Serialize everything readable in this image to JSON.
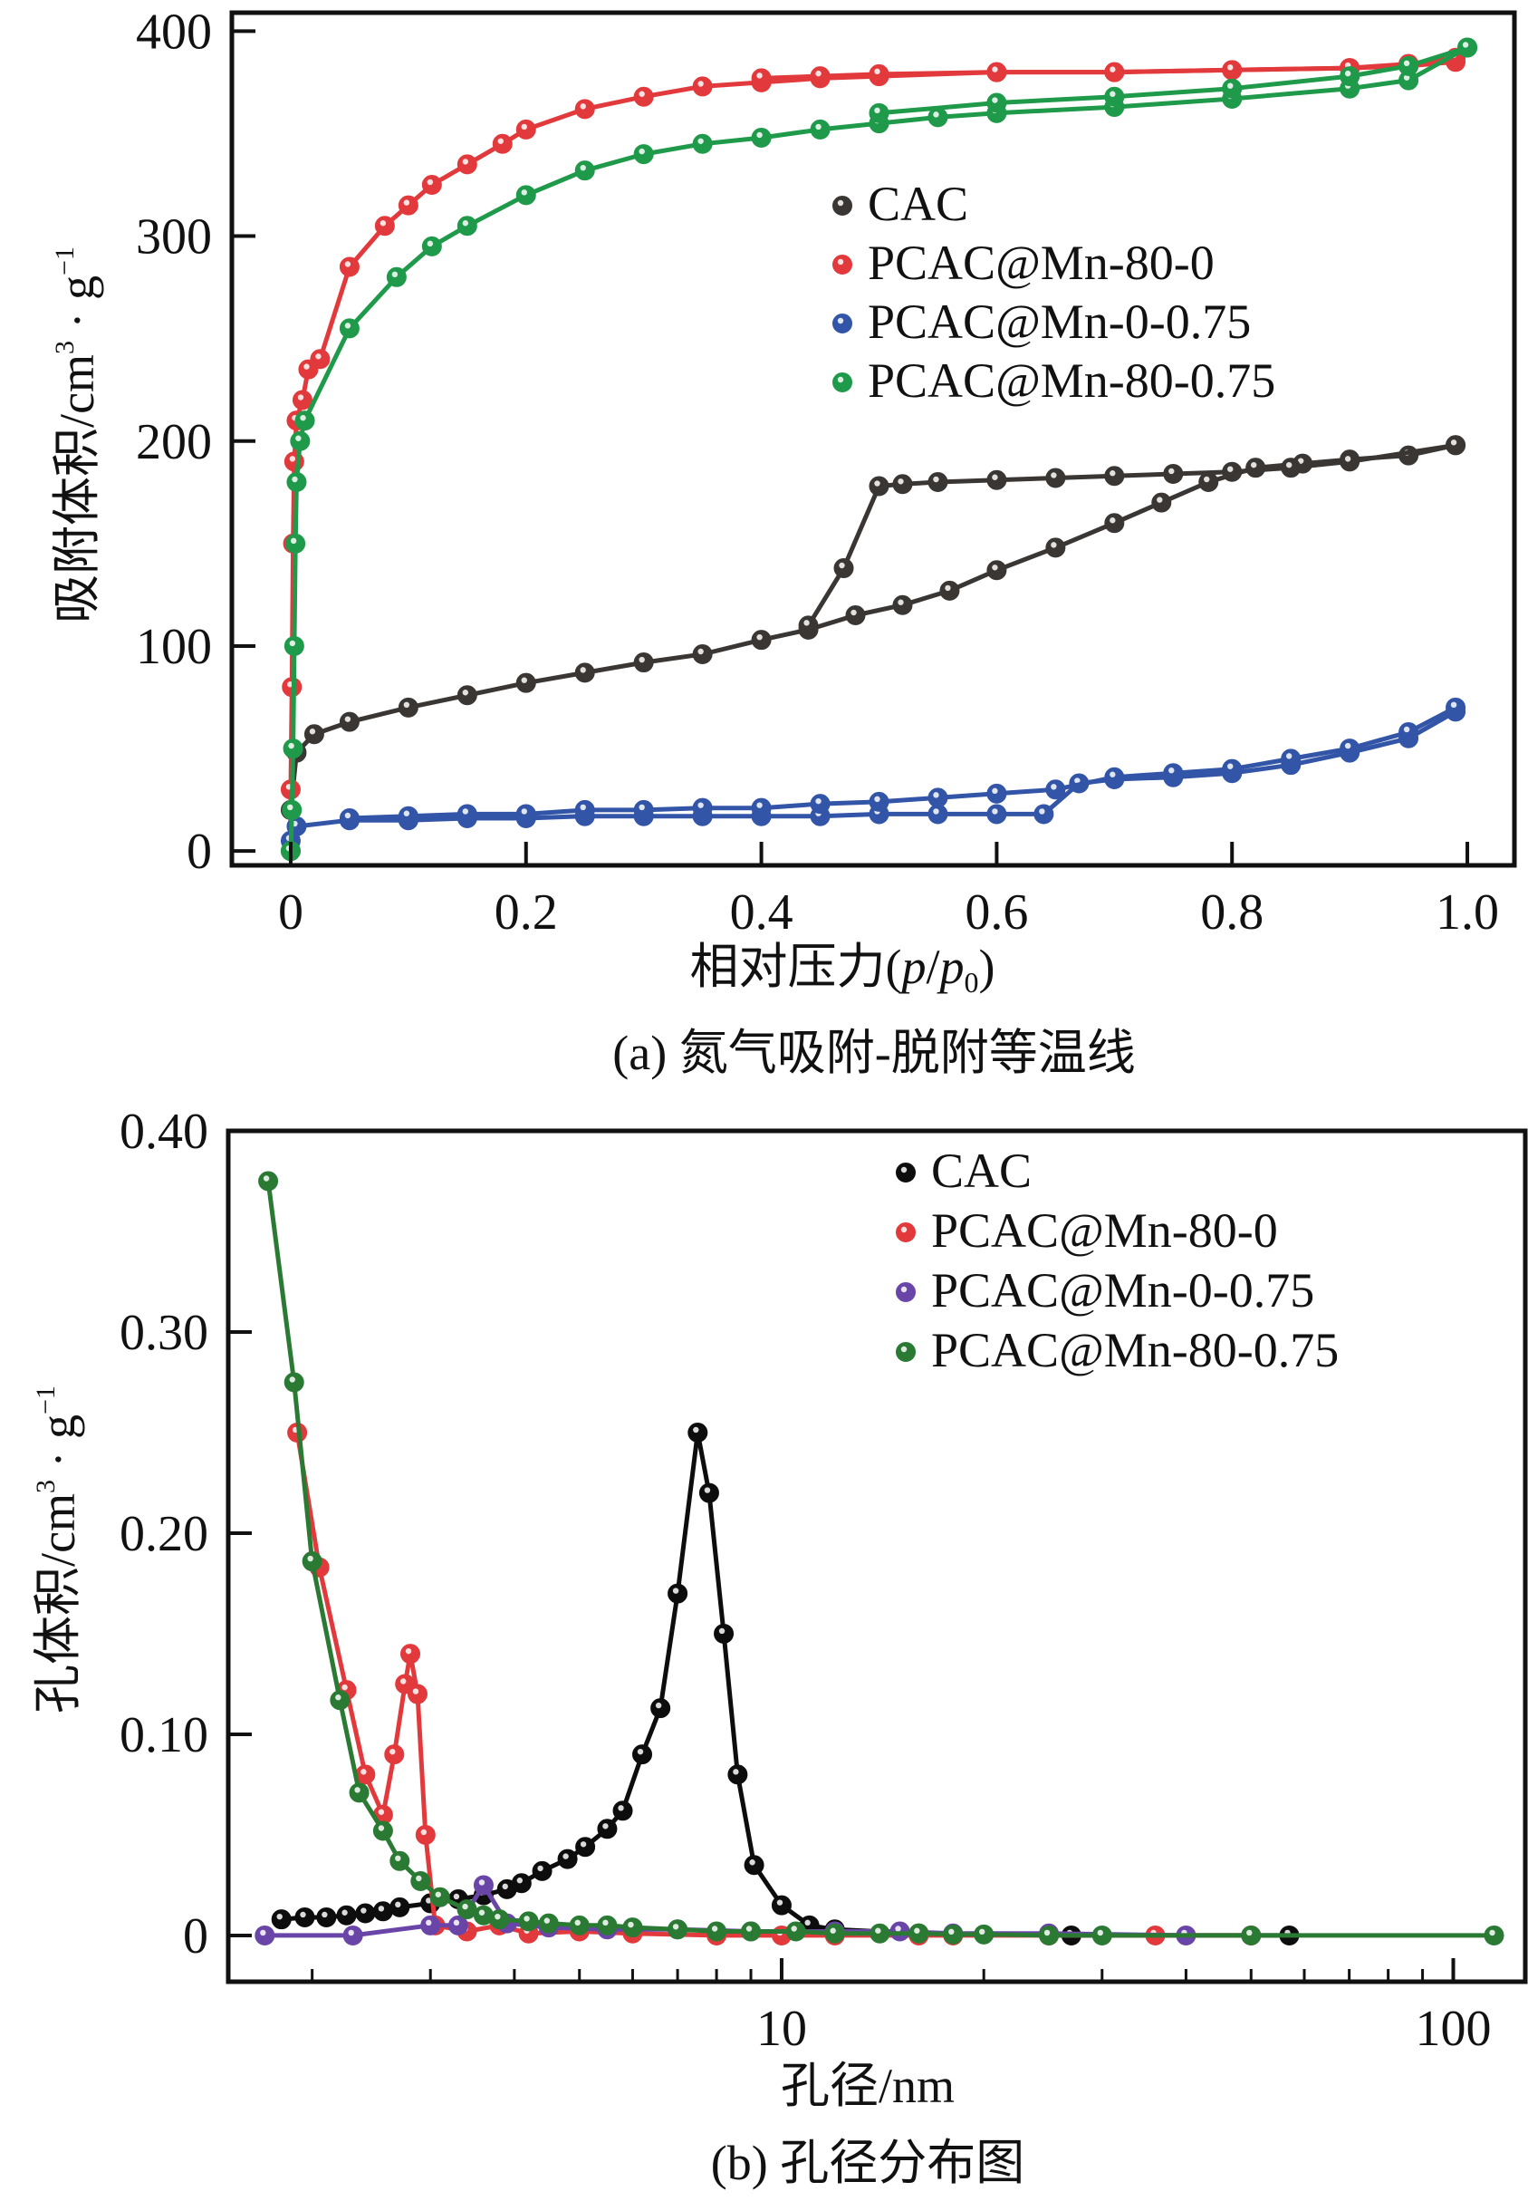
{
  "chart_data": [
    {
      "id": "a",
      "type": "line",
      "title": "",
      "caption": "(a) 氮气吸附-脱附等温线",
      "xlabel": "相对压力(p/p0)",
      "xlabel_parts": {
        "prefix": "相对压力(",
        "p": "p",
        "slash": "/",
        "p0": "p",
        "sub": "0",
        "suffix": ")"
      },
      "ylabel": "吸附体积/cm³ · g⁻¹",
      "ylabel_parts": {
        "main": "吸附体积/cm",
        "sup": "3",
        "mid": " · g",
        "sup2": "−1"
      },
      "xscale": "linear",
      "xlim": [
        -0.05,
        1.04
      ],
      "ylim": [
        -7,
        409
      ],
      "xticks": [
        0,
        0.2,
        0.4,
        0.6,
        0.8,
        1.0
      ],
      "xtick_labels": [
        "0",
        "0.2",
        "0.4",
        "0.6",
        "0.8",
        "1.0"
      ],
      "yticks": [
        0,
        100,
        200,
        300,
        400
      ],
      "ytick_labels": [
        "0",
        "100",
        "200",
        "300",
        "400"
      ],
      "grid": false,
      "legend_position": "upper-right",
      "legend": [
        "CAC",
        "PCAC@Mn-80-0",
        "PCAC@Mn-0-0.75",
        "PCAC@Mn-80-0.75"
      ],
      "series": [
        {
          "name": "CAC",
          "color": "#3a3634",
          "adsorption": {
            "x": [
              0.0,
              0.005,
              0.02,
              0.05,
              0.1,
              0.15,
              0.2,
              0.25,
              0.3,
              0.35,
              0.4,
              0.44,
              0.48,
              0.52,
              0.56,
              0.6,
              0.65,
              0.7,
              0.74,
              0.78,
              0.82,
              0.86,
              0.9,
              0.95,
              0.99
            ],
            "y": [
              20,
              48,
              57,
              63,
              70,
              76,
              82,
              87,
              92,
              96,
              103,
              108,
              115,
              120,
              127,
              137,
              148,
              160,
              170,
              180,
              187,
              189,
              191,
              193,
              198
            ]
          },
          "desorption": {
            "x": [
              0.99,
              0.9,
              0.85,
              0.8,
              0.75,
              0.7,
              0.65,
              0.6,
              0.55,
              0.52,
              0.5,
              0.47,
              0.44
            ],
            "y": [
              198,
              190,
              187,
              185,
              184,
              183,
              182,
              181,
              180,
              179,
              178,
              138,
              110
            ]
          }
        },
        {
          "name": "PCAC@Mn-80-0",
          "color": "#e23a3c",
          "adsorption": {
            "x": [
              0.0,
              0.0,
              0.001,
              0.002,
              0.003,
              0.005,
              0.01,
              0.015,
              0.025,
              0.05,
              0.08,
              0.1,
              0.12,
              0.15,
              0.18,
              0.2,
              0.25,
              0.3,
              0.35,
              0.4,
              0.45,
              0.5,
              0.6,
              0.7,
              0.8,
              0.9,
              0.95,
              0.99
            ],
            "y": [
              0,
              30,
              80,
              150,
              190,
              210,
              220,
              235,
              240,
              285,
              305,
              315,
              325,
              335,
              345,
              352,
              362,
              368,
              373,
              375,
              377,
              378,
              380,
              380,
              381,
              382,
              383,
              385
            ]
          },
          "desorption": {
            "x": [
              0.99,
              0.95,
              0.9,
              0.8,
              0.7,
              0.6,
              0.5,
              0.45,
              0.4
            ],
            "y": [
              387,
              384,
              382,
              381,
              380,
              380,
              379,
              378,
              377
            ]
          }
        },
        {
          "name": "PCAC@Mn-0-0.75",
          "color": "#3355a8",
          "adsorption": {
            "x": [
              0.0,
              0.005,
              0.05,
              0.1,
              0.15,
              0.2,
              0.25,
              0.3,
              0.35,
              0.4,
              0.45,
              0.5,
              0.55,
              0.6,
              0.64,
              0.67,
              0.7,
              0.75,
              0.8,
              0.85,
              0.9,
              0.95,
              0.99
            ],
            "y": [
              5,
              12,
              15,
              15,
              16,
              16,
              17,
              17,
              17,
              17,
              17,
              18,
              18,
              18,
              18,
              33,
              35,
              36,
              38,
              42,
              48,
              55,
              68
            ]
          },
          "desorption": {
            "x": [
              0.99,
              0.95,
              0.9,
              0.85,
              0.8,
              0.75,
              0.7,
              0.65,
              0.6,
              0.55,
              0.5,
              0.45,
              0.4,
              0.35,
              0.3,
              0.25,
              0.2,
              0.15,
              0.1,
              0.05
            ],
            "y": [
              70,
              58,
              50,
              45,
              40,
              38,
              36,
              30,
              28,
              26,
              24,
              23,
              21,
              21,
              20,
              20,
              18,
              18,
              17,
              16
            ]
          }
        },
        {
          "name": "PCAC@Mn-80-0.75",
          "color": "#1f9a4a",
          "adsorption": {
            "x": [
              0.0,
              0.001,
              0.002,
              0.003,
              0.004,
              0.005,
              0.008,
              0.012,
              0.05,
              0.09,
              0.12,
              0.15,
              0.2,
              0.25,
              0.3,
              0.35,
              0.4,
              0.45,
              0.5,
              0.55,
              0.6,
              0.7,
              0.8,
              0.9,
              0.95,
              1.0
            ],
            "y": [
              0,
              20,
              50,
              100,
              150,
              180,
              200,
              210,
              255,
              280,
              295,
              305,
              320,
              332,
              340,
              345,
              348,
              352,
              355,
              358,
              360,
              363,
              367,
              372,
              376,
              392
            ]
          },
          "desorption": {
            "x": [
              1.0,
              0.95,
              0.9,
              0.8,
              0.7,
              0.6,
              0.5
            ],
            "y": [
              392,
              383,
              378,
              372,
              368,
              365,
              360
            ]
          }
        }
      ]
    },
    {
      "id": "b",
      "type": "line",
      "title": "",
      "caption": "(b) 孔径分布图",
      "xlabel": "孔径/nm",
      "ylabel": "孔体积/cm³ · g⁻¹",
      "ylabel_parts": {
        "main": "孔体积/cm",
        "sup": "3",
        "mid": " · g",
        "sup2": "−1"
      },
      "xscale": "log",
      "xlim": [
        1.5,
        128
      ],
      "ylim": [
        -0.023,
        0.4
      ],
      "xticks": [
        10,
        100
      ],
      "xtick_labels": [
        "10",
        "100"
      ],
      "xminor_ticks": [
        2,
        3,
        4,
        5,
        6,
        7,
        8,
        9,
        20,
        30,
        40,
        50,
        60,
        70,
        80,
        90
      ],
      "yticks": [
        0,
        0.1,
        0.2,
        0.3,
        0.4
      ],
      "ytick_labels": [
        "0",
        "0.10",
        "0.20",
        "0.30",
        "0.40"
      ],
      "grid": false,
      "legend_position": "upper-right",
      "legend": [
        "CAC",
        "PCAC@Mn-80-0",
        "PCAC@Mn-0-0.75",
        "PCAC@Mn-80-0.75"
      ],
      "series": [
        {
          "name": "CAC",
          "color": "#0d0d0d",
          "x": [
            1.8,
            1.95,
            2.1,
            2.25,
            2.4,
            2.55,
            2.7,
            3.0,
            3.3,
            3.6,
            3.9,
            4.1,
            4.4,
            4.8,
            5.1,
            5.5,
            5.8,
            6.2,
            6.6,
            7.0,
            7.5,
            7.8,
            8.2,
            8.6,
            9.1,
            10.0,
            11.0,
            12.0,
            16.0,
            27.0,
            57.0
          ],
          "y": [
            0.008,
            0.009,
            0.009,
            0.01,
            0.011,
            0.012,
            0.014,
            0.016,
            0.018,
            0.02,
            0.023,
            0.026,
            0.032,
            0.038,
            0.044,
            0.053,
            0.062,
            0.09,
            0.113,
            0.17,
            0.25,
            0.22,
            0.15,
            0.08,
            0.035,
            0.015,
            0.005,
            0.003,
            0.001,
            0.0,
            0.0
          ]
        },
        {
          "name": "PCAC@Mn-80-0",
          "color": "#e23a3c",
          "x": [
            1.9,
            2.05,
            2.25,
            2.4,
            2.55,
            2.65,
            2.75,
            2.8,
            2.87,
            2.95,
            3.05,
            3.4,
            3.8,
            4.2,
            5.0,
            6.0,
            8.0,
            10.0,
            12.0,
            16.0,
            18.0,
            25.0,
            36.0,
            50.0
          ],
          "y": [
            0.25,
            0.183,
            0.122,
            0.08,
            0.06,
            0.09,
            0.125,
            0.14,
            0.12,
            0.05,
            0.005,
            0.002,
            0.005,
            0.001,
            0.002,
            0.001,
            0.0,
            0.0,
            0.0,
            0.0,
            0.0,
            0.0,
            0.0,
            0.0
          ]
        },
        {
          "name": "PCAC@Mn-0-0.75",
          "color": "#6a45a8",
          "x": [
            1.7,
            2.3,
            3.0,
            3.3,
            3.6,
            3.9,
            4.5,
            5.5,
            7.0,
            9.0,
            12.0,
            15.0,
            18.0,
            25.0,
            40.0
          ],
          "y": [
            0.0,
            0.0,
            0.005,
            0.005,
            0.025,
            0.006,
            0.004,
            0.003,
            0.003,
            0.002,
            0.002,
            0.002,
            0.001,
            0.001,
            0.0
          ]
        },
        {
          "name": "PCAC@Mn-80-0.75",
          "color": "#2a7a34",
          "x": [
            1.72,
            1.88,
            2.0,
            2.2,
            2.35,
            2.55,
            2.7,
            2.9,
            3.1,
            3.4,
            3.6,
            3.8,
            4.2,
            4.5,
            5.0,
            5.5,
            6.0,
            7.0,
            8.0,
            9.0,
            10.5,
            12.0,
            14.0,
            16.0,
            18.0,
            20.0,
            25.0,
            30.0,
            50.0,
            115.0
          ],
          "y": [
            0.375,
            0.275,
            0.186,
            0.117,
            0.071,
            0.052,
            0.037,
            0.027,
            0.019,
            0.013,
            0.01,
            0.008,
            0.007,
            0.006,
            0.005,
            0.005,
            0.004,
            0.003,
            0.002,
            0.002,
            0.002,
            0.001,
            0.001,
            0.001,
            0.0005,
            0.0005,
            0.0,
            0.0,
            0.0,
            0.0
          ]
        }
      ]
    }
  ]
}
